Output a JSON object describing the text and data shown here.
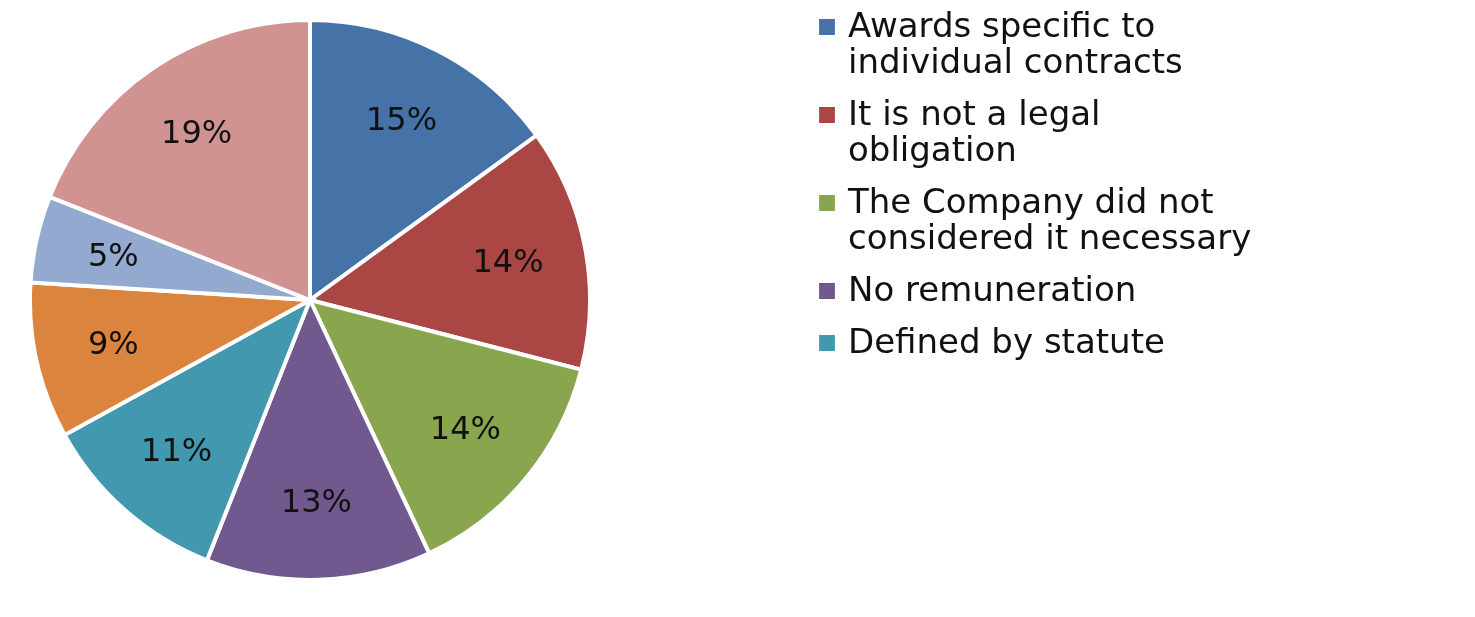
{
  "chart_data": {
    "type": "pie",
    "categories": [
      "Awards specific to individual contracts",
      "It is not a legal obligation",
      "The Company did not considered it necessary",
      "No remuneration",
      "Defined by statute",
      null,
      null,
      null
    ],
    "values": [
      15,
      14,
      14,
      13,
      11,
      9,
      5,
      19
    ],
    "colors": [
      "#4572a7",
      "#aa4643",
      "#89a54e",
      "#71588f",
      "#4198af",
      "#db843d",
      "#93a9cf",
      "#d19392"
    ],
    "value_labels": [
      "15%",
      "14%",
      "14%",
      "13%",
      "11%",
      "9%",
      "5%",
      "19%"
    ],
    "legend": "right"
  }
}
